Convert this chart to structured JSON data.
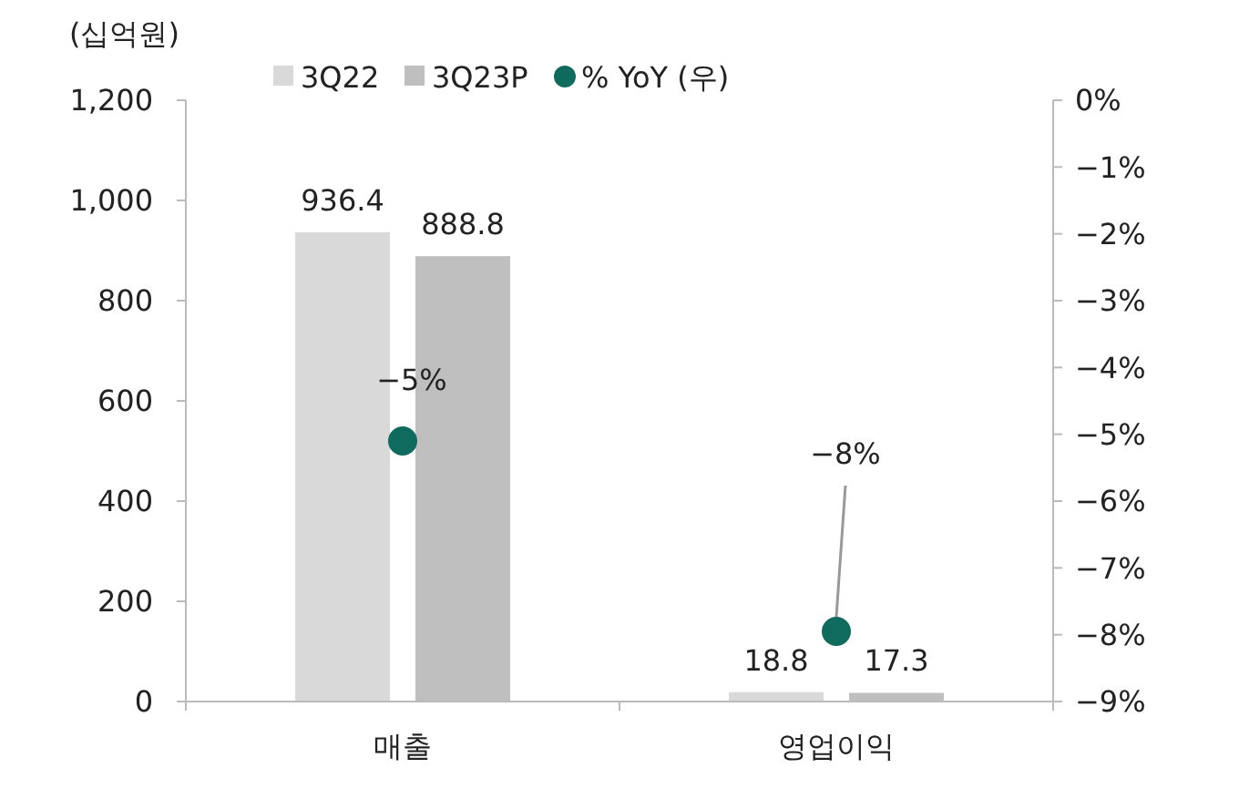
{
  "chart_data": {
    "type": "bar",
    "ylabel": "(십억원)",
    "categories": [
      "매출",
      "영업이익"
    ],
    "series": [
      {
        "name": "3Q22",
        "color": "#d9d9d9",
        "values": [
          936.4,
          18.8
        ],
        "value_labels": [
          "936.4",
          "18.8"
        ]
      },
      {
        "name": "3Q23P",
        "color": "#bfbfbf",
        "values": [
          888.8,
          17.3
        ],
        "value_labels": [
          "888.8",
          "17.3"
        ]
      },
      {
        "name": "% YoY (우)",
        "type": "scatter",
        "axis": "y2",
        "color": "#0e6b5e",
        "marker": "circle",
        "values": [
          -5.1,
          -7.95
        ],
        "value_labels": [
          "−5%",
          "−8%"
        ]
      }
    ],
    "ylim": [
      0,
      1200
    ],
    "yticks": [
      0,
      200,
      400,
      600,
      800,
      {
        "value": 1000,
        "label": "1,000"
      },
      {
        "value": 1200,
        "label": "1,200"
      }
    ],
    "y2lim": [
      -9,
      0
    ],
    "y2ticks": [
      {
        "value": 0,
        "label": "0%"
      },
      {
        "value": -1,
        "label": "−1%"
      },
      {
        "value": -2,
        "label": "−2%"
      },
      {
        "value": -3,
        "label": "−3%"
      },
      {
        "value": -4,
        "label": "−4%"
      },
      {
        "value": -5,
        "label": "−5%"
      },
      {
        "value": -6,
        "label": "−6%"
      },
      {
        "value": -7,
        "label": "−7%"
      },
      {
        "value": -8,
        "label": "−8%"
      },
      {
        "value": -9,
        "label": "−9%"
      }
    ],
    "legend": "top",
    "grid": false
  }
}
